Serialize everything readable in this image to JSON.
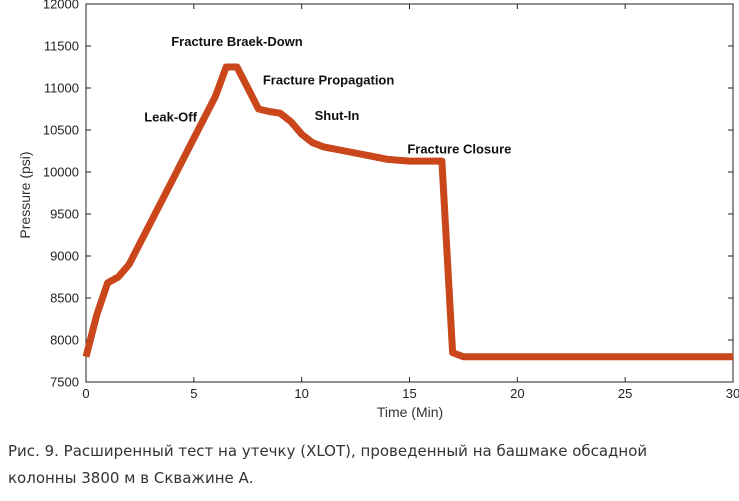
{
  "chart_data": {
    "type": "line",
    "xlabel": "Time (Min)",
    "ylabel": "Pressure (psi)",
    "xlim": [
      0,
      30
    ],
    "ylim": [
      7500,
      12000
    ],
    "x_ticks": [
      0,
      5,
      10,
      15,
      20,
      25,
      30
    ],
    "y_ticks": [
      7500,
      8000,
      8500,
      9000,
      9500,
      10000,
      10500,
      11000,
      11500,
      12000
    ],
    "line_color": "#c9471a",
    "series": [
      {
        "name": "XLOT",
        "x": [
          0,
          0.5,
          1.0,
          1.5,
          2.0,
          3.0,
          4.0,
          5.0,
          6.0,
          6.5,
          7.0,
          7.5,
          8.0,
          8.5,
          9.0,
          9.5,
          10.0,
          10.5,
          11.0,
          12.0,
          13.0,
          14.0,
          15.0,
          16.0,
          16.5,
          17.0,
          17.5,
          18.0,
          20.0,
          25.0,
          30.0
        ],
        "y": [
          7800,
          8300,
          8680,
          8750,
          8900,
          9400,
          9900,
          10400,
          10900,
          11250,
          11250,
          11000,
          10750,
          10720,
          10700,
          10600,
          10450,
          10350,
          10300,
          10250,
          10200,
          10150,
          10130,
          10130,
          10130,
          7850,
          7800,
          7800,
          7800,
          7800,
          7800
        ]
      }
    ],
    "annotations": [
      {
        "text": "Fracture Braek-Down",
        "x": 7.0,
        "y": 11500
      },
      {
        "text": "Fracture Propagation",
        "x": 8.2,
        "y": 11040
      },
      {
        "text": "Leak-Off",
        "x": 2.7,
        "y": 10600
      },
      {
        "text": "Shut-In",
        "x": 10.6,
        "y": 10620
      },
      {
        "text": "Fracture Closure",
        "x": 14.9,
        "y": 10220
      }
    ]
  },
  "caption": {
    "line1": "Рис. 9. Расширенный тест на утечку (XLOT), проведенный на башмаке обсадной",
    "line2": "колонны 3800 м в Скважине А."
  }
}
